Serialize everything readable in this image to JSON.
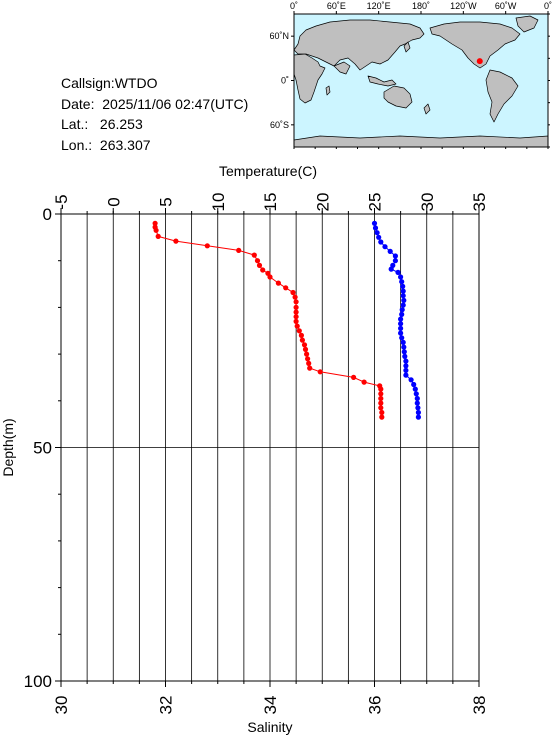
{
  "info": {
    "callsign_label": "Callsign:",
    "callsign_value": "WTDO",
    "date_label": "Date:",
    "date_value": "2025/11/06 02:47(UTC)",
    "lat_label": "Lat.:",
    "lat_value": "26.253",
    "lon_label": "Lon.:",
    "lon_value": "263.307"
  },
  "map": {
    "top_ticks": [
      "0˚",
      "60˚E",
      "120˚E",
      "180˚",
      "120˚W",
      "60˚W",
      "0˚"
    ],
    "lat_ticks": [
      "60˚N",
      "0˚",
      "60˚S"
    ],
    "ocean_color": "#ccf5ff",
    "land_color": "#bfbfbf",
    "marker_color": "#ff0000",
    "marker_lat": 26.253,
    "marker_lon": 263.307
  },
  "chart_data": {
    "type": "line",
    "title": "",
    "top_axis": {
      "label": "Temperature(C)",
      "range": [
        -5,
        35
      ],
      "ticks": [
        "-5",
        "0",
        "5",
        "10",
        "15",
        "20",
        "25",
        "30",
        "35"
      ]
    },
    "bottom_axis": {
      "label": "Salinity",
      "range": [
        30,
        38
      ],
      "ticks": [
        "30",
        "32",
        "34",
        "36",
        "38"
      ]
    },
    "y_axis": {
      "label": "Depth(m)",
      "range": [
        0,
        100
      ],
      "inverted": true,
      "ticks": [
        "0",
        "50",
        "100"
      ]
    },
    "grid": true,
    "series": [
      {
        "name": "Temperature",
        "axis": "top",
        "color": "#ff0000",
        "points": [
          [
            4.0,
            2.0
          ],
          [
            4.0,
            2.8
          ],
          [
            4.1,
            3.5
          ],
          [
            4.3,
            4.8
          ],
          [
            6.0,
            5.8
          ],
          [
            9.0,
            6.8
          ],
          [
            12.0,
            7.8
          ],
          [
            13.5,
            8.8
          ],
          [
            13.8,
            10.0
          ],
          [
            14.0,
            11.0
          ],
          [
            14.3,
            12.0
          ],
          [
            14.8,
            12.7
          ],
          [
            15.0,
            13.5
          ],
          [
            15.8,
            14.8
          ],
          [
            16.5,
            15.8
          ],
          [
            17.2,
            16.8
          ],
          [
            17.4,
            17.8
          ],
          [
            17.5,
            18.8
          ],
          [
            17.5,
            20.0
          ],
          [
            17.5,
            21.0
          ],
          [
            17.5,
            22.0
          ],
          [
            17.5,
            23.0
          ],
          [
            17.6,
            24.0
          ],
          [
            17.8,
            25.0
          ],
          [
            18.0,
            26.0
          ],
          [
            18.1,
            27.0
          ],
          [
            18.3,
            28.0
          ],
          [
            18.4,
            29.0
          ],
          [
            18.5,
            30.0
          ],
          [
            18.6,
            31.0
          ],
          [
            18.7,
            32.0
          ],
          [
            18.8,
            33.0
          ],
          [
            19.8,
            33.8
          ],
          [
            23.0,
            35.0
          ],
          [
            24.0,
            36.0
          ],
          [
            25.5,
            36.8
          ],
          [
            25.6,
            37.5
          ],
          [
            25.6,
            38.5
          ],
          [
            25.6,
            39.5
          ],
          [
            25.6,
            40.5
          ],
          [
            25.6,
            41.5
          ],
          [
            25.7,
            42.5
          ],
          [
            25.7,
            43.5
          ]
        ]
      },
      {
        "name": "Salinity",
        "axis": "bottom",
        "color": "#0000ff",
        "points": [
          [
            36.0,
            2.0
          ],
          [
            36.02,
            3.0
          ],
          [
            36.05,
            4.0
          ],
          [
            36.08,
            5.0
          ],
          [
            36.12,
            6.0
          ],
          [
            36.2,
            7.0
          ],
          [
            36.3,
            8.0
          ],
          [
            36.4,
            9.0
          ],
          [
            36.4,
            10.0
          ],
          [
            36.35,
            11.0
          ],
          [
            36.32,
            11.8
          ],
          [
            36.45,
            12.5
          ],
          [
            36.5,
            13.5
          ],
          [
            36.52,
            14.5
          ],
          [
            36.54,
            15.5
          ],
          [
            36.55,
            16.5
          ],
          [
            36.55,
            17.5
          ],
          [
            36.56,
            18.5
          ],
          [
            36.55,
            19.5
          ],
          [
            36.53,
            20.5
          ],
          [
            36.52,
            21.5
          ],
          [
            36.5,
            22.5
          ],
          [
            36.5,
            23.5
          ],
          [
            36.5,
            24.5
          ],
          [
            36.5,
            25.5
          ],
          [
            36.52,
            26.5
          ],
          [
            36.55,
            27.5
          ],
          [
            36.56,
            28.5
          ],
          [
            36.57,
            29.5
          ],
          [
            36.58,
            30.5
          ],
          [
            36.6,
            31.5
          ],
          [
            36.6,
            32.5
          ],
          [
            36.6,
            33.5
          ],
          [
            36.6,
            34.5
          ],
          [
            36.7,
            35.5
          ],
          [
            36.75,
            36.5
          ],
          [
            36.78,
            37.5
          ],
          [
            36.8,
            38.5
          ],
          [
            36.82,
            39.5
          ],
          [
            36.82,
            40.5
          ],
          [
            36.83,
            41.5
          ],
          [
            36.84,
            42.5
          ],
          [
            36.84,
            43.5
          ]
        ]
      }
    ]
  }
}
